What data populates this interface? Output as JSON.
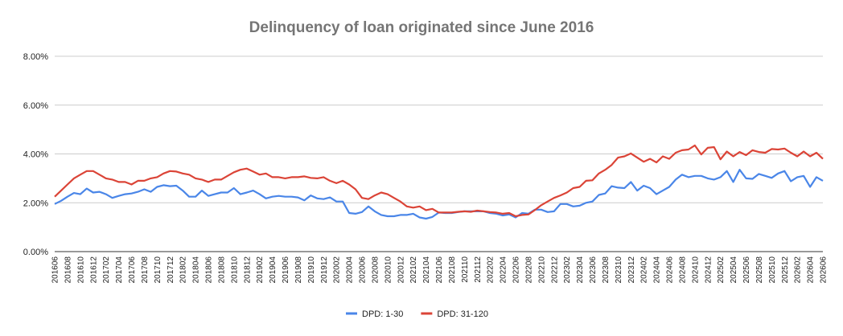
{
  "chart_data": {
    "type": "line",
    "title": "Delinquency of loan originated since June 2016",
    "categories": [
      "201606",
      null,
      "201608",
      null,
      "201610",
      null,
      "201612",
      null,
      "201702",
      null,
      "201704",
      null,
      "201706",
      null,
      "201708",
      null,
      "201710",
      null,
      "201712",
      null,
      "201802",
      null,
      "201804",
      null,
      "201806",
      null,
      "201808",
      null,
      "201810",
      null,
      "201812",
      null,
      "201902",
      null,
      "201904",
      null,
      "201906",
      null,
      "201908",
      null,
      "201910",
      null,
      "201912",
      null,
      "202002",
      null,
      "202004",
      null,
      "202006",
      null,
      "202008",
      null,
      "202010",
      null,
      "202012",
      null,
      "202102",
      null,
      "202104",
      null,
      "202106",
      null,
      "202108",
      null,
      "202110",
      null,
      "202112",
      null,
      "202202",
      null,
      "202204",
      null,
      "202206",
      null,
      "202208",
      null,
      "202210",
      null,
      "202212",
      null,
      "202302",
      null,
      "202304",
      null,
      "202306",
      null,
      "202308",
      null,
      "202310",
      null,
      "202312",
      null,
      "202402",
      null,
      "202404",
      null,
      "202406",
      null,
      "202408",
      null,
      "202410",
      null,
      "202412",
      null,
      "202502",
      null,
      "202504",
      null,
      "202506",
      null,
      "202508",
      null,
      "202510",
      null,
      "202512",
      null,
      "202602",
      null,
      "202604",
      null,
      "202606"
    ],
    "series": [
      {
        "name": "DPD: 1-30",
        "color": "#4a86e8",
        "values": [
          1.95,
          2.08,
          2.25,
          2.4,
          2.35,
          2.58,
          2.42,
          2.45,
          2.35,
          2.2,
          2.28,
          2.35,
          2.38,
          2.45,
          2.55,
          2.45,
          2.65,
          2.72,
          2.68,
          2.7,
          2.5,
          2.25,
          2.25,
          2.5,
          2.28,
          2.35,
          2.42,
          2.42,
          2.6,
          2.35,
          2.42,
          2.5,
          2.35,
          2.18,
          2.25,
          2.28,
          2.25,
          2.25,
          2.22,
          2.1,
          2.3,
          2.18,
          2.15,
          2.22,
          2.05,
          2.05,
          1.58,
          1.55,
          1.62,
          1.85,
          1.65,
          1.5,
          1.45,
          1.45,
          1.5,
          1.5,
          1.55,
          1.4,
          1.35,
          1.42,
          1.6,
          1.58,
          1.58,
          1.62,
          1.65,
          1.65,
          1.65,
          1.65,
          1.58,
          1.55,
          1.48,
          1.52,
          1.4,
          1.58,
          1.55,
          1.72,
          1.72,
          1.62,
          1.65,
          1.95,
          1.95,
          1.85,
          1.88,
          2.0,
          2.05,
          2.32,
          2.38,
          2.68,
          2.62,
          2.6,
          2.85,
          2.5,
          2.7,
          2.6,
          2.35,
          2.5,
          2.65,
          2.95,
          3.15,
          3.05,
          3.1,
          3.1,
          3.0,
          2.95,
          3.05,
          3.3,
          2.85,
          3.35,
          3.0,
          2.98,
          3.18,
          3.1,
          3.02,
          3.2,
          3.3,
          2.88,
          3.05,
          3.1,
          2.65,
          3.05,
          2.9
        ]
      },
      {
        "name": "DPD: 31-120",
        "color": "#db4437",
        "values": [
          2.25,
          2.5,
          2.75,
          3.0,
          3.15,
          3.3,
          3.3,
          3.15,
          3.0,
          2.95,
          2.85,
          2.85,
          2.75,
          2.9,
          2.9,
          3.0,
          3.05,
          3.2,
          3.3,
          3.28,
          3.2,
          3.15,
          3.0,
          2.95,
          2.85,
          2.95,
          2.95,
          3.1,
          3.25,
          3.35,
          3.4,
          3.28,
          3.15,
          3.2,
          3.05,
          3.05,
          3.0,
          3.05,
          3.05,
          3.08,
          3.02,
          3.0,
          3.05,
          2.9,
          2.8,
          2.9,
          2.75,
          2.55,
          2.2,
          2.15,
          2.3,
          2.42,
          2.35,
          2.2,
          2.05,
          1.85,
          1.8,
          1.85,
          1.7,
          1.75,
          1.6,
          1.6,
          1.6,
          1.63,
          1.65,
          1.63,
          1.68,
          1.65,
          1.62,
          1.6,
          1.55,
          1.58,
          1.45,
          1.5,
          1.52,
          1.7,
          1.9,
          2.05,
          2.2,
          2.3,
          2.42,
          2.6,
          2.65,
          2.9,
          2.92,
          3.2,
          3.35,
          3.55,
          3.85,
          3.9,
          4.02,
          3.85,
          3.68,
          3.8,
          3.65,
          3.9,
          3.8,
          4.05,
          4.15,
          4.18,
          4.35,
          3.98,
          4.25,
          4.28,
          3.78,
          4.1,
          3.9,
          4.08,
          3.95,
          4.15,
          4.08,
          4.05,
          4.2,
          4.18,
          4.22,
          4.05,
          3.9,
          4.1,
          3.9,
          4.05,
          3.8
        ]
      }
    ],
    "ylim": [
      0,
      8
    ],
    "yticks": [
      {
        "value": 0,
        "label": "0.00%"
      },
      {
        "value": 2,
        "label": "2.00%"
      },
      {
        "value": 4,
        "label": "4.00%"
      },
      {
        "value": 6,
        "label": "6.00%"
      },
      {
        "value": 8,
        "label": "8.00%"
      }
    ],
    "grid": true,
    "legend": "bottom"
  }
}
